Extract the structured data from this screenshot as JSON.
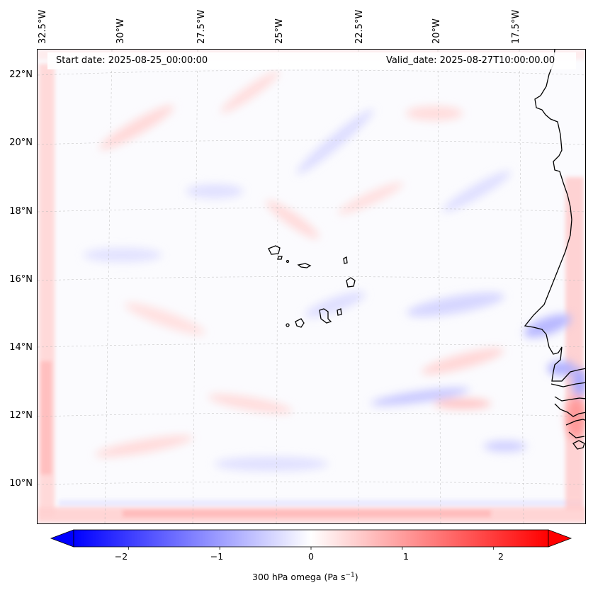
{
  "map": {
    "start_date_label": "Start date: 2025-08-25_00:00:00",
    "valid_date_label": "Valid_date: 2025-08-27T10:00:00.00",
    "lon_labels": [
      "32.5°W",
      "30°W",
      "27.5°W",
      "25°W",
      "22.5°W",
      "20°W",
      "17.5°W"
    ],
    "lat_labels": [
      "22°N",
      "20°N",
      "18°N",
      "16°N",
      "14°N",
      "12°N",
      "10°N"
    ],
    "variable": "300 hPa omega",
    "units_text": "(Pa s",
    "units_exp": "−1",
    "units_close": ")"
  },
  "colorbar": {
    "min": -2.6,
    "max": 2.6,
    "ticks": [
      "−2",
      "−1",
      "0",
      "1",
      "2"
    ],
    "tick_values": [
      -2,
      -1,
      0,
      1,
      2
    ],
    "neg_color": "#0000ff",
    "zero_color": "#ffffff",
    "pos_color": "#ff0000"
  }
}
